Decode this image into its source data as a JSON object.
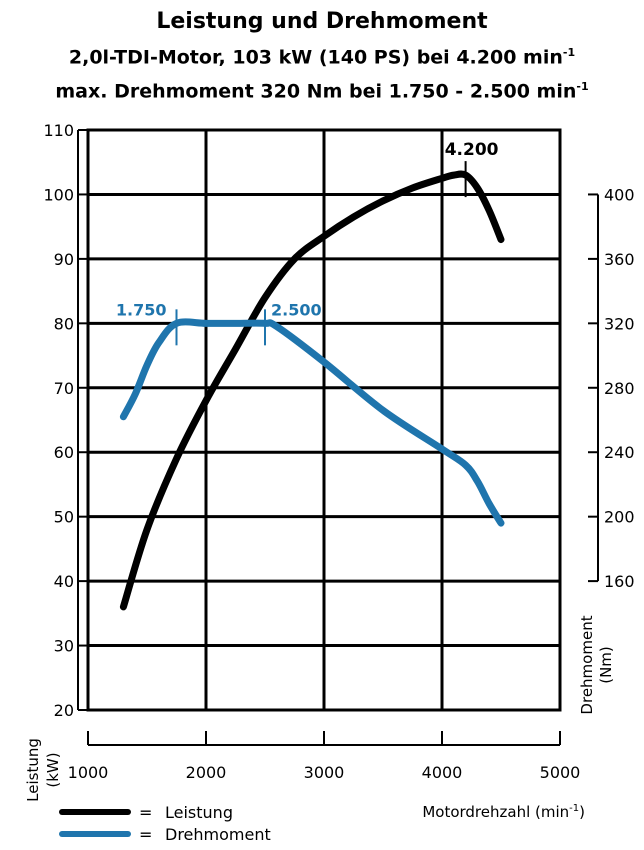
{
  "header": {
    "title": "Leistung und Drehmoment",
    "subtitle1_main": "2,0l-TDI-Motor, 103 kW (140 PS) bei 4.200 min",
    "subtitle1_sup": "-1",
    "subtitle2_main": "max. Drehmoment 320 Nm bei 1.750 - 2.500 min",
    "subtitle2_sup": "-1"
  },
  "legend": {
    "eq": "=",
    "items": [
      {
        "label": "Leistung",
        "color": "#000000"
      },
      {
        "label": "Drehmoment",
        "color": "#1f75ad"
      }
    ]
  },
  "chart_data": {
    "type": "line",
    "xlabel_main": "Motordrehzahl (min",
    "xlabel_sup": "-1",
    "xlabel_close": ")",
    "ylabel_left": "Leistung",
    "ylabel_left_unit": "(kW)",
    "ylabel_right": "Drehmoment",
    "ylabel_right_unit": "(Nm)",
    "xlim": [
      1000,
      5000
    ],
    "ylim_left": [
      20,
      110
    ],
    "ylim_right": [
      160,
      400
    ],
    "x_ticks": [
      "1000",
      "2000",
      "3000",
      "4000",
      "5000"
    ],
    "y_left_ticks": [
      "20",
      "30",
      "40",
      "50",
      "60",
      "70",
      "80",
      "90",
      "100",
      "110"
    ],
    "y_right_ticks": [
      "160",
      "200",
      "240",
      "280",
      "320",
      "360",
      "400"
    ],
    "grid": true,
    "series": [
      {
        "name": "Leistung",
        "axis": "left",
        "color": "#000000",
        "x": [
          1300,
          1500,
          1750,
          2000,
          2250,
          2500,
          2750,
          3000,
          3250,
          3500,
          3750,
          4000,
          4100,
          4200,
          4300,
          4400,
          4500
        ],
        "y": [
          36,
          48,
          59,
          68,
          76,
          84,
          90,
          93.5,
          96.5,
          99,
          101,
          102.5,
          103,
          103,
          101,
          97.5,
          93
        ]
      },
      {
        "name": "Drehmoment",
        "axis": "right",
        "color": "#1f75ad",
        "x": [
          1300,
          1400,
          1500,
          1600,
          1750,
          2000,
          2250,
          2500,
          2600,
          3000,
          3500,
          4000,
          4200,
          4300,
          4400,
          4500
        ],
        "y": [
          262,
          276,
          294,
          308,
          320,
          320,
          320,
          320,
          318,
          296,
          266,
          242,
          232,
          222,
          208,
          196
        ]
      }
    ],
    "annotations": [
      {
        "text": "1.750",
        "x": 1750,
        "series": "Drehmoment"
      },
      {
        "text": "2.500",
        "x": 2500,
        "series": "Drehmoment"
      },
      {
        "text": "4.200",
        "x": 4200,
        "series": "Leistung"
      }
    ]
  }
}
